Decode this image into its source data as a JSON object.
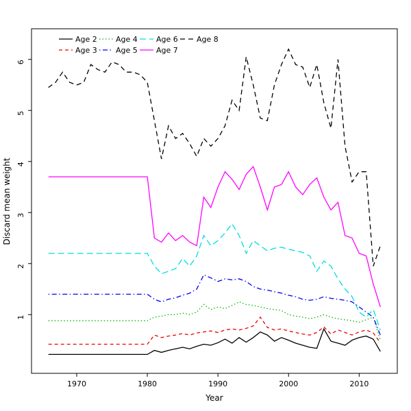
{
  "chart_data": {
    "type": "line",
    "title": "",
    "xlabel": "Year",
    "ylabel": "Discard mean weight",
    "xlim": [
      1963.6,
      2015.4
    ],
    "ylim": [
      -0.15,
      6.6
    ],
    "x_ticks": [
      1970,
      1980,
      1990,
      2000,
      2010
    ],
    "y_ticks": [
      1,
      2,
      3,
      4,
      5,
      6
    ],
    "grid": false,
    "legend_position": "top-left",
    "legend_rows": 2,
    "x": [
      1966,
      1967,
      1968,
      1969,
      1970,
      1971,
      1972,
      1973,
      1974,
      1975,
      1976,
      1977,
      1978,
      1979,
      1980,
      1981,
      1982,
      1983,
      1984,
      1985,
      1986,
      1987,
      1988,
      1989,
      1990,
      1991,
      1992,
      1993,
      1994,
      1995,
      1996,
      1997,
      1998,
      1999,
      2000,
      2001,
      2002,
      2003,
      2004,
      2005,
      2006,
      2007,
      2008,
      2009,
      2010,
      2011,
      2012,
      2013
    ],
    "series": [
      {
        "name": "Age 2",
        "color": "#000000",
        "linetype": "solid",
        "values": [
          0.22,
          0.22,
          0.22,
          0.22,
          0.22,
          0.22,
          0.22,
          0.22,
          0.22,
          0.22,
          0.22,
          0.22,
          0.22,
          0.22,
          0.22,
          0.3,
          0.26,
          0.3,
          0.33,
          0.36,
          0.33,
          0.38,
          0.42,
          0.4,
          0.45,
          0.52,
          0.44,
          0.55,
          0.46,
          0.55,
          0.66,
          0.6,
          0.48,
          0.55,
          0.5,
          0.44,
          0.4,
          0.36,
          0.34,
          0.72,
          0.48,
          0.44,
          0.4,
          0.5,
          0.55,
          0.58,
          0.52,
          0.28
        ]
      },
      {
        "name": "Age 3",
        "color": "#ee0000",
        "linetype": "dashed",
        "values": [
          0.42,
          0.42,
          0.42,
          0.42,
          0.42,
          0.42,
          0.42,
          0.42,
          0.42,
          0.42,
          0.42,
          0.42,
          0.42,
          0.42,
          0.42,
          0.6,
          0.55,
          0.58,
          0.6,
          0.63,
          0.6,
          0.64,
          0.66,
          0.68,
          0.65,
          0.7,
          0.72,
          0.7,
          0.73,
          0.78,
          0.95,
          0.75,
          0.7,
          0.72,
          0.68,
          0.65,
          0.62,
          0.6,
          0.65,
          0.76,
          0.62,
          0.7,
          0.65,
          0.6,
          0.66,
          0.7,
          0.64,
          0.45
        ]
      },
      {
        "name": "Age 4",
        "color": "#00b400",
        "linetype": "dotted",
        "values": [
          0.88,
          0.88,
          0.88,
          0.88,
          0.88,
          0.88,
          0.88,
          0.88,
          0.88,
          0.88,
          0.88,
          0.88,
          0.88,
          0.88,
          0.88,
          0.95,
          0.97,
          1.0,
          1.0,
          1.03,
          1.0,
          1.05,
          1.2,
          1.1,
          1.15,
          1.12,
          1.18,
          1.25,
          1.2,
          1.18,
          1.15,
          1.12,
          1.1,
          1.08,
          1.0,
          0.97,
          0.95,
          0.92,
          0.95,
          1.0,
          0.95,
          0.92,
          0.9,
          0.88,
          0.85,
          0.9,
          0.95,
          0.5
        ]
      },
      {
        "name": "Age 5",
        "color": "#0000ee",
        "linetype": "dotdash",
        "values": [
          1.4,
          1.4,
          1.4,
          1.4,
          1.4,
          1.4,
          1.4,
          1.4,
          1.4,
          1.4,
          1.4,
          1.4,
          1.4,
          1.4,
          1.4,
          1.3,
          1.25,
          1.3,
          1.33,
          1.38,
          1.42,
          1.5,
          1.78,
          1.72,
          1.65,
          1.7,
          1.68,
          1.7,
          1.65,
          1.55,
          1.5,
          1.48,
          1.45,
          1.42,
          1.38,
          1.35,
          1.3,
          1.28,
          1.3,
          1.35,
          1.32,
          1.3,
          1.28,
          1.25,
          1.15,
          1.05,
          0.95,
          0.6
        ]
      },
      {
        "name": "Age 6",
        "color": "#00dddd",
        "linetype": "longdash",
        "values": [
          2.2,
          2.2,
          2.2,
          2.2,
          2.2,
          2.2,
          2.2,
          2.2,
          2.2,
          2.2,
          2.2,
          2.2,
          2.2,
          2.2,
          2.2,
          1.95,
          1.8,
          1.85,
          1.9,
          2.1,
          1.95,
          2.15,
          2.55,
          2.35,
          2.45,
          2.6,
          2.78,
          2.55,
          2.2,
          2.45,
          2.35,
          2.25,
          2.3,
          2.32,
          2.28,
          2.25,
          2.22,
          2.15,
          1.85,
          2.05,
          1.95,
          1.7,
          1.5,
          1.35,
          1.05,
          0.95,
          1.1,
          0.7
        ]
      },
      {
        "name": "Age 7",
        "color": "#ff00ff",
        "linetype": "solid",
        "values": [
          3.7,
          3.7,
          3.7,
          3.7,
          3.7,
          3.7,
          3.7,
          3.7,
          3.7,
          3.7,
          3.7,
          3.7,
          3.7,
          3.7,
          3.7,
          2.5,
          2.42,
          2.6,
          2.45,
          2.55,
          2.42,
          2.35,
          3.3,
          3.1,
          3.5,
          3.8,
          3.65,
          3.45,
          3.75,
          3.9,
          3.5,
          3.05,
          3.5,
          3.55,
          3.8,
          3.5,
          3.35,
          3.55,
          3.68,
          3.3,
          3.05,
          3.2,
          2.55,
          2.5,
          2.2,
          2.15,
          1.6,
          1.15
        ]
      },
      {
        "name": "Age 8",
        "color": "#000000",
        "linetype": "dashed8",
        "values": [
          5.45,
          5.55,
          5.75,
          5.55,
          5.5,
          5.55,
          5.9,
          5.8,
          5.75,
          5.95,
          5.9,
          5.75,
          5.75,
          5.7,
          5.55,
          4.8,
          4.05,
          4.7,
          4.45,
          4.55,
          4.35,
          4.1,
          4.45,
          4.3,
          4.45,
          4.7,
          5.2,
          5.0,
          6.05,
          5.5,
          4.85,
          4.8,
          5.5,
          5.9,
          6.2,
          5.9,
          5.85,
          5.45,
          5.9,
          5.15,
          4.65,
          6.0,
          4.3,
          3.6,
          3.8,
          3.8,
          1.95,
          2.35
        ]
      }
    ]
  }
}
